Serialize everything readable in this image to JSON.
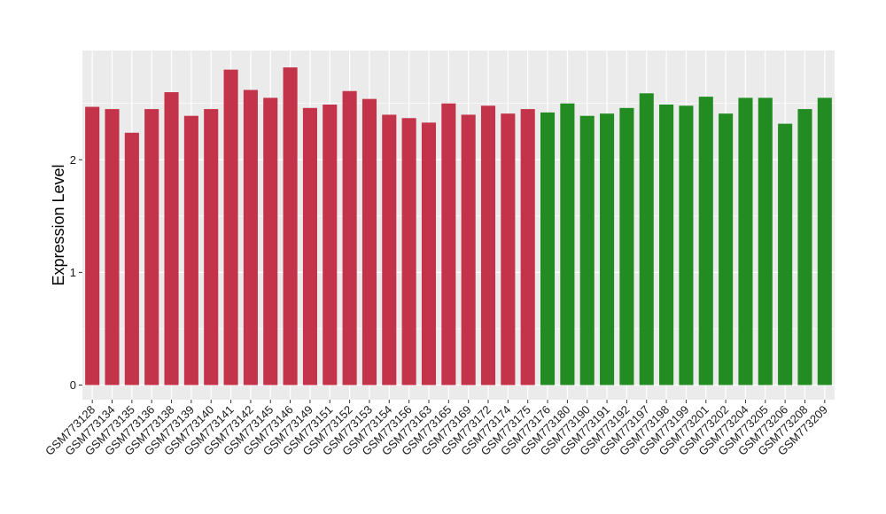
{
  "chart_data": {
    "type": "bar",
    "title": "",
    "xlabel": "",
    "ylabel": "Expression Level",
    "ylim": [
      -0.13,
      2.97
    ],
    "yticks": [
      0,
      1,
      2
    ],
    "grid": true,
    "legend": "none",
    "colors": {
      "red_group": "#c3334a",
      "green_group": "#228b22",
      "panel_bg": "#ebebeb",
      "grid": "#ffffff"
    },
    "categories": [
      "GSM773128",
      "GSM773134",
      "GSM773135",
      "GSM773136",
      "GSM773138",
      "GSM773139",
      "GSM773140",
      "GSM773141",
      "GSM773142",
      "GSM773145",
      "GSM773146",
      "GSM773149",
      "GSM773151",
      "GSM773152",
      "GSM773153",
      "GSM773154",
      "GSM773156",
      "GSM773163",
      "GSM773165",
      "GSM773169",
      "GSM773172",
      "GSM773174",
      "GSM773175",
      "GSM773176",
      "GSM773180",
      "GSM773190",
      "GSM773191",
      "GSM773192",
      "GSM773197",
      "GSM773198",
      "GSM773199",
      "GSM773201",
      "GSM773202",
      "GSM773204",
      "GSM773205",
      "GSM773206",
      "GSM773208",
      "GSM773209"
    ],
    "values": [
      2.47,
      2.45,
      2.24,
      2.45,
      2.6,
      2.39,
      2.45,
      2.8,
      2.62,
      2.55,
      2.82,
      2.46,
      2.49,
      2.61,
      2.54,
      2.4,
      2.37,
      2.33,
      2.5,
      2.4,
      2.48,
      2.41,
      2.45,
      2.42,
      2.5,
      2.39,
      2.41,
      2.46,
      2.59,
      2.49,
      2.48,
      2.56,
      2.41,
      2.55,
      2.55,
      2.32,
      2.45,
      2.55
    ],
    "groups": [
      "red",
      "red",
      "red",
      "red",
      "red",
      "red",
      "red",
      "red",
      "red",
      "red",
      "red",
      "red",
      "red",
      "red",
      "red",
      "red",
      "red",
      "red",
      "red",
      "red",
      "red",
      "red",
      "red",
      "green",
      "green",
      "green",
      "green",
      "green",
      "green",
      "green",
      "green",
      "green",
      "green",
      "green",
      "green",
      "green",
      "green",
      "green"
    ]
  }
}
